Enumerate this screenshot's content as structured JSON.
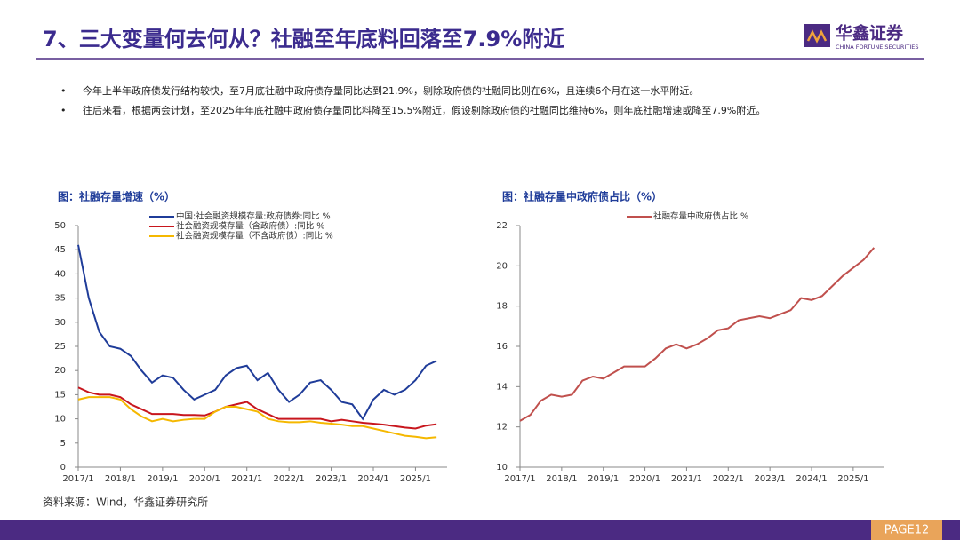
{
  "header": {
    "title": "7、三大变量何去何从？社融至年底料回落至7.9%附近",
    "logo_cn": "华鑫证券",
    "logo_en": "CHINA FORTUNE SECURITIES"
  },
  "bullets": [
    "今年上半年政府债发行结构较快，至7月底社融中政府债存量同比达到21.9%，剔除政府债的社融同比则在6%，且连续6个月在这一水平附近。",
    "往后来看，根据两会计划，至2025年年底社融中政府债存量同比料降至15.5%附近，假设剔除政府债的社融同比维持6%，则年底社融增速或降至7.9%附近。"
  ],
  "source": "资料来源：Wind，华鑫证券研究所",
  "page": "PAGE12",
  "chart_data": [
    {
      "type": "line",
      "title": "图：社融存量增速（%）",
      "legend": "top-left",
      "x": [
        "2017/1",
        "2017/4",
        "2017/7",
        "2017/10",
        "2018/1",
        "2018/4",
        "2018/7",
        "2018/10",
        "2019/1",
        "2019/4",
        "2019/7",
        "2019/10",
        "2020/1",
        "2020/4",
        "2020/7",
        "2020/10",
        "2021/1",
        "2021/4",
        "2021/7",
        "2021/10",
        "2022/1",
        "2022/4",
        "2022/7",
        "2022/10",
        "2023/1",
        "2023/4",
        "2023/7",
        "2023/10",
        "2024/1",
        "2024/4",
        "2024/7",
        "2024/10",
        "2025/1",
        "2025/4",
        "2025/7"
      ],
      "xlim": [
        "2017/1",
        "2025/10"
      ],
      "xticks": [
        "2017/1",
        "2018/1",
        "2019/1",
        "2020/1",
        "2021/1",
        "2022/1",
        "2023/1",
        "2024/1",
        "2025/1"
      ],
      "ylim": [
        0,
        50
      ],
      "yticks": [
        0,
        5,
        10,
        15,
        20,
        25,
        30,
        35,
        40,
        45,
        50
      ],
      "series": [
        {
          "name": "中国:社会融资规模存量:政府债券:同比 %",
          "color": "#1f3c99",
          "values": [
            46,
            35,
            28,
            25,
            24.5,
            23,
            20,
            17.5,
            19,
            18.5,
            16,
            14,
            15,
            16,
            19,
            20.5,
            21,
            18,
            19.5,
            16,
            13.5,
            15,
            17.5,
            18,
            16,
            13.5,
            13,
            10,
            14,
            16,
            15,
            16,
            18,
            21,
            22
          ]
        },
        {
          "name": "社会融资规模存量（含政府债）:同比 %",
          "color": "#c8161d",
          "values": [
            16.5,
            15.5,
            15,
            15,
            14.5,
            13,
            12,
            11,
            11,
            11,
            10.8,
            10.8,
            10.7,
            11.5,
            12.5,
            13,
            13.5,
            12,
            11,
            10,
            10,
            10,
            10,
            10,
            9.5,
            9.8,
            9.5,
            9.2,
            9,
            8.8,
            8.5,
            8.2,
            8,
            8.6,
            8.9
          ]
        },
        {
          "name": "社会融资规模存量（不含政府债）:同比 %",
          "color": "#f5b800",
          "values": [
            14,
            14.5,
            14.5,
            14.5,
            14,
            12,
            10.5,
            9.5,
            10,
            9.5,
            9.8,
            10,
            10,
            11.5,
            12.5,
            12.5,
            12,
            11.5,
            10,
            9.5,
            9.3,
            9.3,
            9.5,
            9.2,
            9,
            8.8,
            8.5,
            8.5,
            8,
            7.5,
            7,
            6.5,
            6.3,
            6,
            6.2
          ]
        }
      ]
    },
    {
      "type": "line",
      "title": "图：社融存量中政府债占比（%）",
      "legend": "top-right",
      "x": [
        "2017/1",
        "2017/4",
        "2017/7",
        "2017/10",
        "2018/1",
        "2018/4",
        "2018/7",
        "2018/10",
        "2019/1",
        "2019/4",
        "2019/7",
        "2019/10",
        "2020/1",
        "2020/4",
        "2020/7",
        "2020/10",
        "2021/1",
        "2021/4",
        "2021/7",
        "2021/10",
        "2022/1",
        "2022/4",
        "2022/7",
        "2022/10",
        "2023/1",
        "2023/4",
        "2023/7",
        "2023/10",
        "2024/1",
        "2024/4",
        "2024/7",
        "2024/10",
        "2025/1",
        "2025/4",
        "2025/7"
      ],
      "xlim": [
        "2017/1",
        "2025/10"
      ],
      "xticks": [
        "2017/1",
        "2018/1",
        "2019/1",
        "2020/1",
        "2021/1",
        "2022/1",
        "2023/1",
        "2024/1",
        "2025/1"
      ],
      "ylim": [
        10,
        22
      ],
      "yticks": [
        10,
        12,
        14,
        16,
        18,
        20,
        22
      ],
      "series": [
        {
          "name": "社融存量中政府债占比 %",
          "color": "#c0504d",
          "values": [
            12.3,
            12.6,
            13.3,
            13.6,
            13.5,
            13.6,
            14.3,
            14.5,
            14.4,
            14.7,
            15,
            15,
            15,
            15.4,
            15.9,
            16.1,
            15.9,
            16.1,
            16.4,
            16.8,
            16.9,
            17.3,
            17.4,
            17.5,
            17.4,
            17.6,
            17.8,
            18.4,
            18.3,
            18.5,
            19,
            19.5,
            19.9,
            20.3,
            20.9
          ]
        }
      ]
    }
  ]
}
